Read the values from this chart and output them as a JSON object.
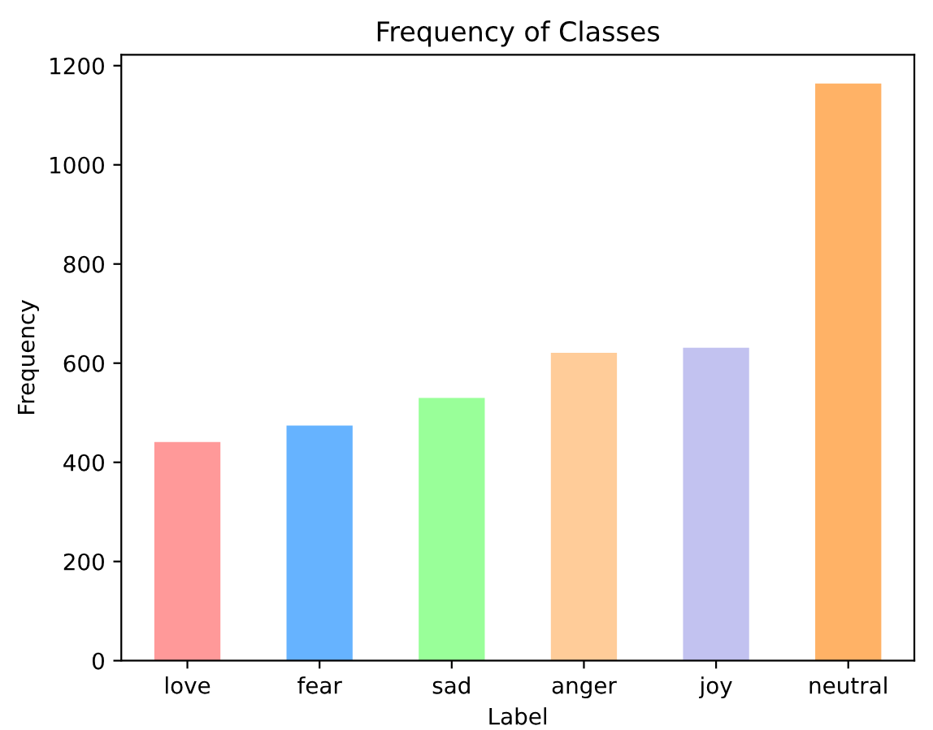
{
  "chart_data": {
    "type": "bar",
    "title": "Frequency of Classes",
    "xlabel": "Label",
    "ylabel": "Frequency",
    "categories": [
      "love",
      "fear",
      "sad",
      "anger",
      "joy",
      "neutral"
    ],
    "values": [
      441,
      474,
      530,
      621,
      631,
      1164
    ],
    "colors": [
      "#ff9999",
      "#66b3ff",
      "#99ff99",
      "#ffcc99",
      "#c2c2f0",
      "#ffb266"
    ],
    "ylim": [
      0,
      1222
    ],
    "yticks": [
      0,
      200,
      400,
      600,
      800,
      1000,
      1200
    ],
    "grid": false,
    "legend": false
  }
}
